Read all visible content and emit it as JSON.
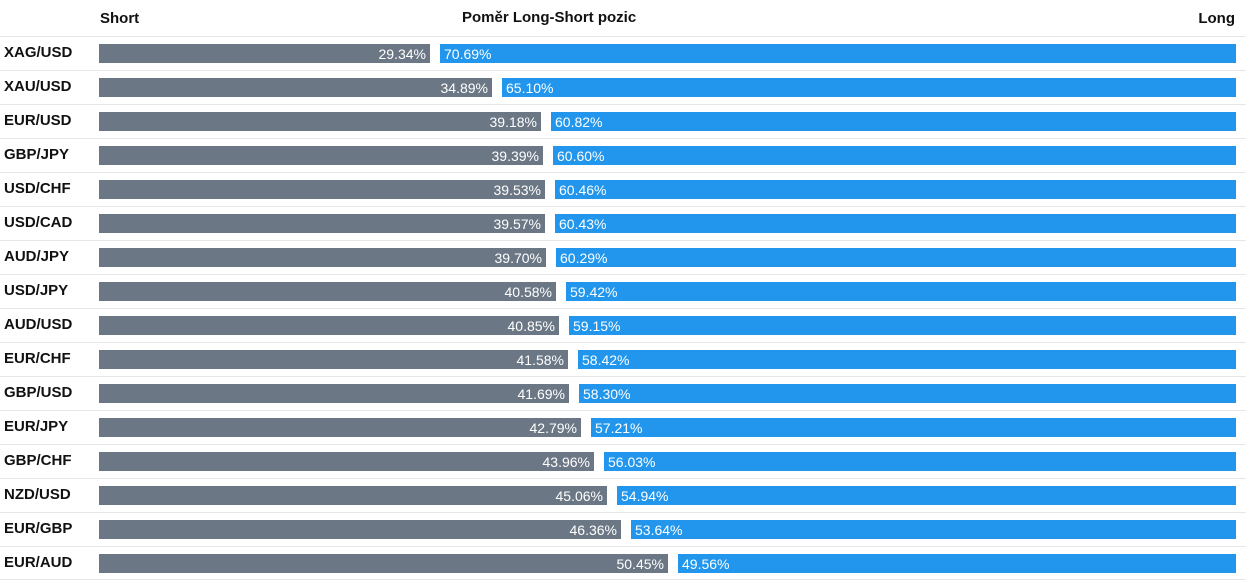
{
  "header": {
    "short_label": "Short",
    "title": "Poměr Long-Short pozic",
    "long_label": "Long"
  },
  "colors": {
    "short_bar": "#6b7785",
    "long_bar": "#2196ec"
  },
  "chart_data": {
    "type": "bar",
    "stacked": true,
    "orientation": "horizontal",
    "title": "Poměr Long-Short pozic",
    "categories": [
      "XAG/USD",
      "XAU/USD",
      "EUR/USD",
      "GBP/JPY",
      "USD/CHF",
      "USD/CAD",
      "AUD/JPY",
      "USD/JPY",
      "AUD/USD",
      "EUR/CHF",
      "GBP/USD",
      "EUR/JPY",
      "GBP/CHF",
      "NZD/USD",
      "EUR/GBP",
      "EUR/AUD"
    ],
    "series": [
      {
        "name": "Short",
        "values": [
          29.34,
          34.89,
          39.18,
          39.39,
          39.53,
          39.57,
          39.7,
          40.58,
          40.85,
          41.58,
          41.69,
          42.79,
          43.96,
          45.06,
          46.36,
          50.45
        ],
        "labels": [
          "29.34%",
          "34.89%",
          "39.18%",
          "39.39%",
          "39.53%",
          "39.57%",
          "39.70%",
          "40.58%",
          "40.85%",
          "41.58%",
          "41.69%",
          "42.79%",
          "43.96%",
          "45.06%",
          "46.36%",
          "50.45%"
        ]
      },
      {
        "name": "Long",
        "values": [
          70.69,
          65.1,
          60.82,
          60.6,
          60.46,
          60.43,
          60.29,
          59.42,
          59.15,
          58.42,
          58.3,
          57.21,
          56.03,
          54.94,
          53.64,
          49.56
        ],
        "labels": [
          "70.69%",
          "65.10%",
          "60.82%",
          "60.60%",
          "60.46%",
          "60.43%",
          "60.29%",
          "59.42%",
          "59.15%",
          "58.42%",
          "58.30%",
          "57.21%",
          "56.03%",
          "54.94%",
          "53.64%",
          "49.56%"
        ]
      }
    ],
    "xlim": [
      0,
      100
    ],
    "unit": "%"
  }
}
